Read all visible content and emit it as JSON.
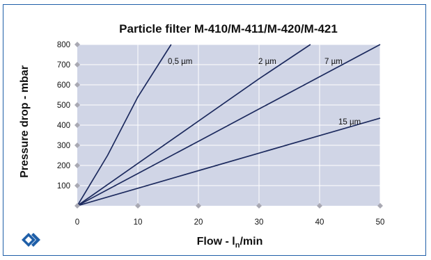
{
  "chart_data": {
    "type": "line",
    "title": "Particle filter M-410/M-411/M-420/M-421",
    "xlabel": "Flow - ",
    "xlabel_main": "l",
    "xlabel_sub": "n",
    "xlabel_suffix": "/min",
    "ylabel": "Pressure drop - mbar",
    "xlim": [
      0,
      50
    ],
    "ylim": [
      0,
      800
    ],
    "x_ticks": [
      "0",
      "10",
      "20",
      "30",
      "40",
      "50"
    ],
    "y_ticks": [
      "100",
      "200",
      "300",
      "400",
      "500",
      "600",
      "700",
      "800"
    ],
    "grid": true,
    "plot_background": "#d0d5e6",
    "line_color": "#1c2a5e",
    "grid_color": "#ffffff",
    "series": [
      {
        "name": "0,5 µm",
        "x": [
          0,
          5,
          10,
          15.5
        ],
        "y": [
          0,
          250,
          540,
          800
        ]
      },
      {
        "name": "2 µm",
        "x": [
          0,
          10,
          20,
          30,
          38.5
        ],
        "y": [
          0,
          210,
          420,
          630,
          800
        ]
      },
      {
        "name": "7 µm",
        "x": [
          0,
          10,
          20,
          30,
          40,
          50
        ],
        "y": [
          0,
          160,
          320,
          480,
          640,
          800
        ]
      },
      {
        "name": "15 µm",
        "x": [
          0,
          10,
          20,
          30,
          40,
          50
        ],
        "y": [
          0,
          87,
          174,
          261,
          348,
          435
        ]
      }
    ]
  },
  "logo": {
    "icon": "chevrons-logo-icon",
    "color": "#1f5fa8"
  }
}
